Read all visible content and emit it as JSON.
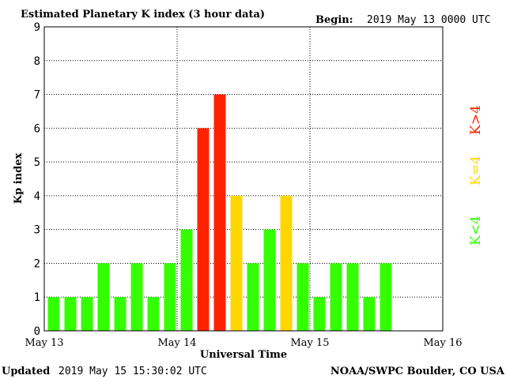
{
  "header": {
    "title": "Estimated Planetary K index (3 hour data)",
    "begin_label": "Begin:",
    "begin_value": "2019 May 13 0000 UTC"
  },
  "footer": {
    "updated_label": "Updated",
    "updated_value": "2019 May 15 15:30:02 UTC",
    "source": "NOAA/SWPC Boulder, CO USA"
  },
  "legend": {
    "high": "K>4",
    "equal": "K=4",
    "low": "K<4"
  },
  "colors": {
    "low": "#33ff00",
    "equal": "#ffd700",
    "high": "#ff2200",
    "grid": "#000000"
  },
  "chart_data": {
    "type": "bar",
    "title": "Estimated Planetary K index (3 hour data)",
    "xlabel": "Universal Time",
    "ylabel": "Kp index",
    "ylim": [
      0,
      9
    ],
    "yticks": [
      "0",
      "1",
      "2",
      "3",
      "4",
      "5",
      "6",
      "7",
      "8",
      "9"
    ],
    "xticks": [
      "May 13",
      "May 14",
      "May 15",
      "May 16"
    ],
    "bars_per_day": 8,
    "days": 3,
    "grid": true,
    "values": [
      1,
      1,
      1,
      2,
      1,
      2,
      1,
      2,
      3,
      6,
      7,
      4,
      2,
      3,
      4,
      2,
      1,
      2,
      2,
      1,
      2
    ]
  }
}
